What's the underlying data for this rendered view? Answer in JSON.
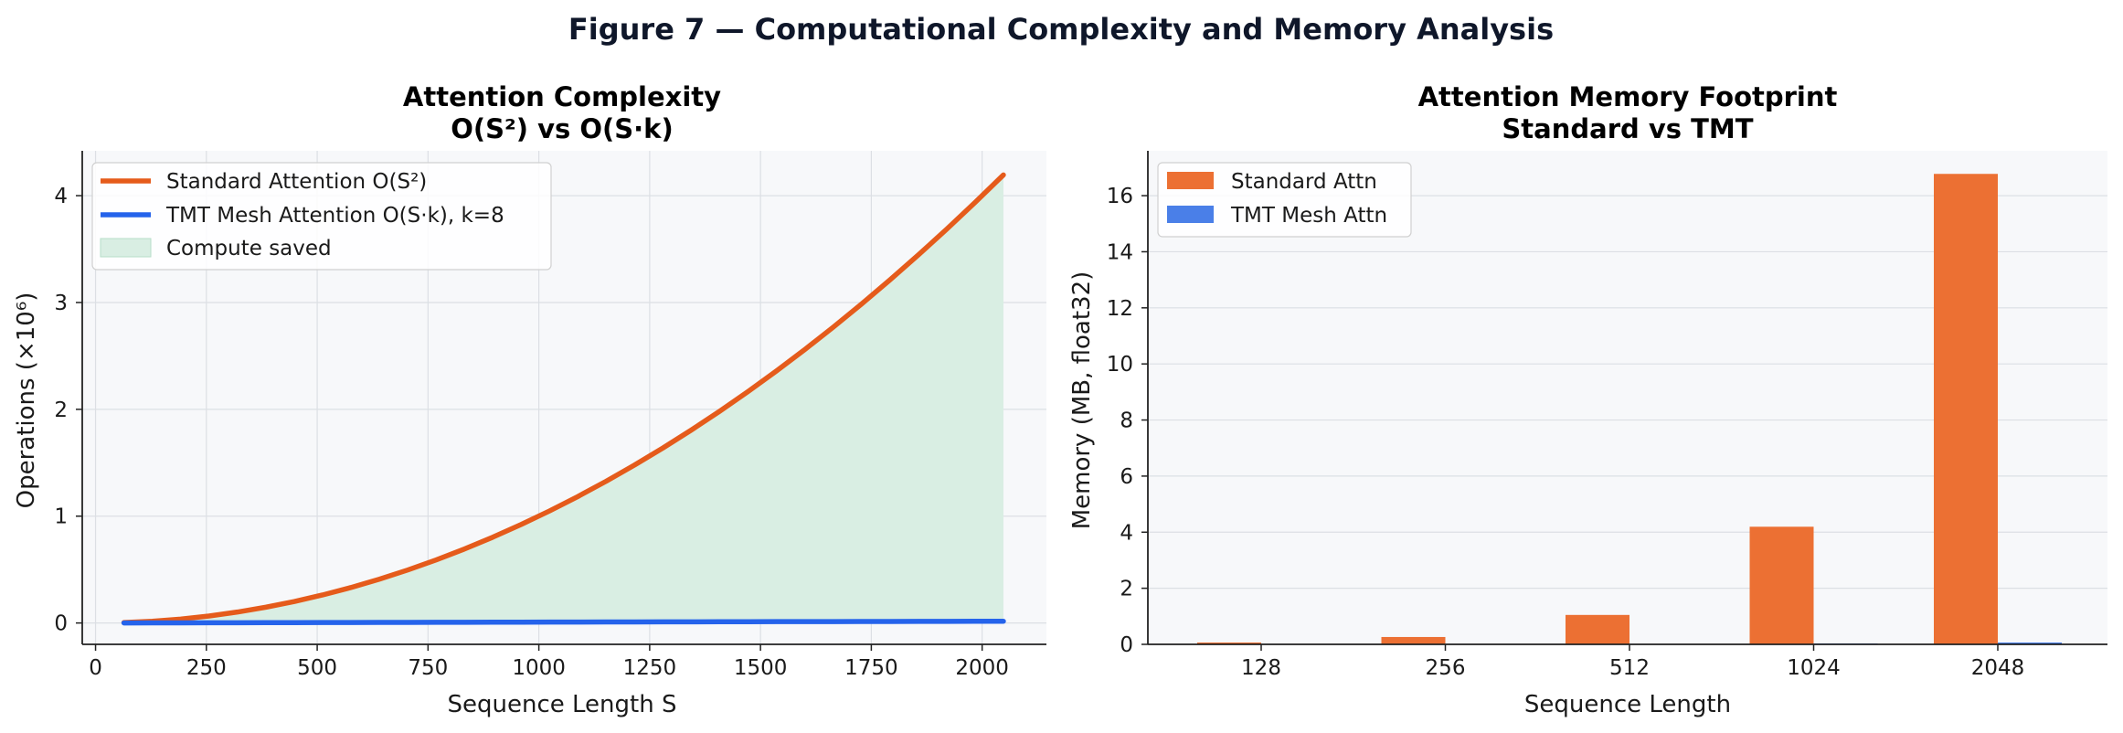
{
  "suptitle": "Figure 7 — Computational Complexity and Memory Analysis",
  "colors": {
    "standard": "#e55b1b",
    "tmt": "#2563eb",
    "saved_fill": "#d9eee3",
    "saved_edge": "#b7dec8",
    "bar_standard": "#ec7033",
    "bar_tmt": "#4a7fe8",
    "panel_bg": "#f7f8fa",
    "grid": "#dcdfe4"
  },
  "chart_data": [
    {
      "type": "line",
      "title_line1": "Attention Complexity",
      "title_line2": "O(S²) vs O(S·k)",
      "xlabel": "Sequence Length  S",
      "ylabel": "Operations  (×10⁶)",
      "xlim": [
        -30,
        2145
      ],
      "ylim": [
        -0.2,
        4.42
      ],
      "xticks": [
        0,
        250,
        500,
        750,
        1000,
        1250,
        1500,
        1750,
        2000
      ],
      "xtick_labels": [
        "0",
        "250",
        "500",
        "750",
        "1000",
        "1250",
        "1500",
        "1750",
        "2000"
      ],
      "yticks": [
        0,
        1,
        2,
        3,
        4
      ],
      "ytick_labels": [
        "0",
        "1",
        "2",
        "3",
        "4"
      ],
      "grid": true,
      "legend_position": "upper-left",
      "x": [
        64,
        128,
        192,
        256,
        320,
        384,
        448,
        512,
        576,
        640,
        704,
        768,
        832,
        896,
        960,
        1024,
        1088,
        1152,
        1216,
        1280,
        1344,
        1408,
        1472,
        1536,
        1600,
        1664,
        1728,
        1792,
        1856,
        1920,
        1984,
        2048
      ],
      "series": [
        {
          "name": "Standard Attention  O(S²)",
          "color_key": "standard",
          "values": [
            0.0041,
            0.0164,
            0.0369,
            0.0655,
            0.1024,
            0.1475,
            0.2007,
            0.2621,
            0.3318,
            0.4096,
            0.4956,
            0.5898,
            0.6922,
            0.8028,
            0.9216,
            1.0486,
            1.1837,
            1.3271,
            1.4787,
            1.6384,
            1.8063,
            1.9825,
            2.1668,
            2.3593,
            2.56,
            2.7689,
            2.986,
            3.2113,
            3.4447,
            3.6864,
            3.9363,
            4.1943
          ]
        },
        {
          "name": "TMT Mesh Attention  O(S·k), k=8",
          "color_key": "tmt",
          "values": [
            0.0005,
            0.001,
            0.0015,
            0.002,
            0.0026,
            0.0031,
            0.0036,
            0.0041,
            0.0046,
            0.0051,
            0.0056,
            0.0061,
            0.0067,
            0.0072,
            0.0077,
            0.0082,
            0.0087,
            0.0092,
            0.0097,
            0.0102,
            0.0108,
            0.0113,
            0.0118,
            0.0123,
            0.0128,
            0.0133,
            0.0138,
            0.0143,
            0.0148,
            0.0154,
            0.0159,
            0.0164
          ]
        }
      ],
      "fill_label": "Compute saved"
    },
    {
      "type": "bar",
      "title_line1": "Attention Memory Footprint",
      "title_line2": "Standard vs TMT",
      "xlabel": "Sequence Length",
      "ylabel": "Memory (MB, float32)",
      "ylim": [
        0,
        17.6
      ],
      "yticks": [
        0,
        2,
        4,
        6,
        8,
        10,
        12,
        14,
        16
      ],
      "ytick_labels": [
        "0",
        "2",
        "4",
        "6",
        "8",
        "10",
        "12",
        "14",
        "16"
      ],
      "grid": true,
      "legend_position": "upper-left",
      "categories": [
        "128",
        "256",
        "512",
        "1024",
        "2048"
      ],
      "series": [
        {
          "name": "Standard Attn",
          "color_key": "bar_standard",
          "values": [
            0.066,
            0.262,
            1.049,
            4.194,
            16.777
          ]
        },
        {
          "name": "TMT Mesh Attn",
          "color_key": "bar_tmt",
          "values": [
            0.004,
            0.008,
            0.016,
            0.033,
            0.066
          ]
        }
      ]
    }
  ]
}
